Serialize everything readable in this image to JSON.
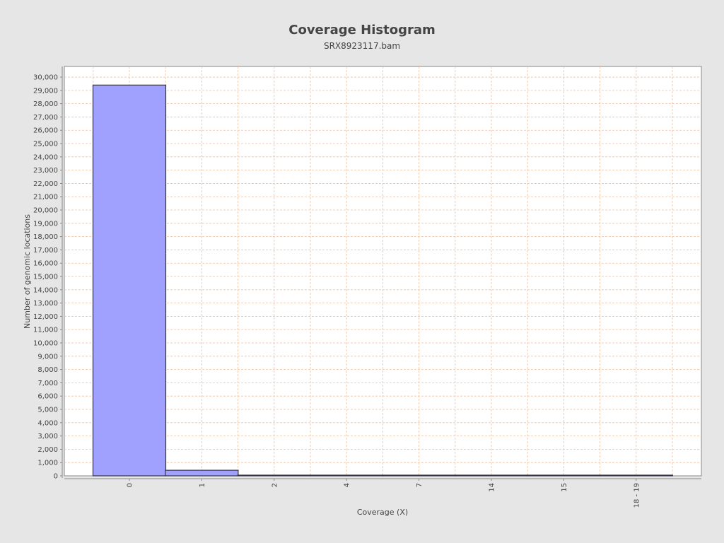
{
  "chart_data": {
    "type": "bar",
    "title": "Coverage Histogram",
    "subtitle": "SRX8923117.bam",
    "xlabel": "Coverage (X)",
    "ylabel": "Number of genomic locations",
    "categories": [
      "0",
      "1",
      "2",
      "4",
      "7",
      "14",
      "15",
      "18 - 19"
    ],
    "values": [
      29400,
      420,
      40,
      5,
      30,
      5,
      5,
      30
    ],
    "ylim": [
      0,
      30800
    ],
    "yticks": [
      0,
      1000,
      2000,
      3000,
      4000,
      5000,
      6000,
      7000,
      8000,
      9000,
      10000,
      11000,
      12000,
      13000,
      14000,
      15000,
      16000,
      17000,
      18000,
      19000,
      20000,
      21000,
      22000,
      23000,
      24000,
      25000,
      26000,
      27000,
      28000,
      29000,
      30000
    ],
    "ytick_labels": [
      "0",
      "1,000",
      "2,000",
      "3,000",
      "4,000",
      "5,000",
      "6,000",
      "7,000",
      "8,000",
      "9,000",
      "10,000",
      "11,000",
      "12,000",
      "13,000",
      "14,000",
      "15,000",
      "16,000",
      "17,000",
      "18,000",
      "19,000",
      "20,000",
      "21,000",
      "22,000",
      "23,000",
      "24,000",
      "25,000",
      "26,000",
      "27,000",
      "28,000",
      "29,000",
      "30,000"
    ],
    "grid": true,
    "legend": "none",
    "colors": {
      "bar_fill": "#a0a0ff",
      "bar_stroke": "#333344",
      "grid": "#f0c0a0",
      "plot_background": "#ffffff",
      "page_background": "#e6e6e6"
    }
  }
}
